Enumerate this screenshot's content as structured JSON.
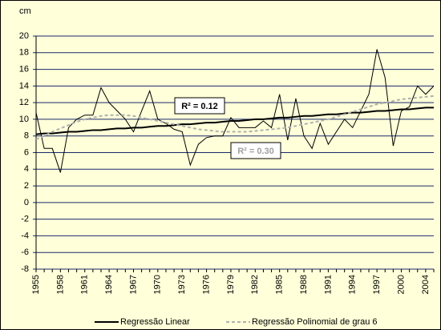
{
  "chart_data": {
    "type": "line",
    "y_label": "cm",
    "categories": [
      "1955",
      null,
      null,
      "1958",
      null,
      null,
      "1961",
      null,
      null,
      "1964",
      null,
      null,
      "1967",
      null,
      null,
      "1970",
      null,
      null,
      "1973",
      null,
      null,
      "1976",
      null,
      null,
      "1979",
      null,
      null,
      "1982",
      null,
      null,
      "1985",
      null,
      null,
      "1988",
      null,
      null,
      "1991",
      null,
      null,
      "1994",
      null,
      null,
      "1997",
      null,
      null,
      "2000",
      null,
      null,
      "2004",
      null
    ],
    "series": [
      {
        "color": "#000000",
        "values": [
          10.8,
          6.5,
          6.5,
          3.6,
          9,
          10,
          10.5,
          10.5,
          13.8,
          12,
          11,
          10,
          8.5,
          11,
          13.4,
          10,
          9.5,
          8.8,
          8.5,
          4.5,
          7,
          7.8,
          8,
          8,
          10.2,
          9,
          9,
          9,
          9.8,
          9,
          13,
          7.5,
          12.5,
          8,
          6.5,
          9.5,
          7,
          8.5,
          10,
          9,
          11,
          13,
          18.4,
          15,
          6.8,
          11,
          11.5,
          14,
          13,
          14
        ]
      },
      {
        "name": "Regressão Linear",
        "color": "#000000",
        "values": [
          8.2,
          8.3,
          8.3,
          8.4,
          8.5,
          8.5,
          8.6,
          8.7,
          8.7,
          8.8,
          8.9,
          8.9,
          9.0,
          9.0,
          9.1,
          9.2,
          9.2,
          9.3,
          9.4,
          9.4,
          9.5,
          9.6,
          9.6,
          9.7,
          9.8,
          9.8,
          9.9,
          10.0,
          10.0,
          10.1,
          10.2,
          10.2,
          10.3,
          10.4,
          10.4,
          10.5,
          10.6,
          10.6,
          10.7,
          10.8,
          10.8,
          10.9,
          11.0,
          11.0,
          11.1,
          11.2,
          11.2,
          11.3,
          11.4,
          11.4
        ]
      },
      {
        "name": "Regressão Polinomial de grau 6",
        "color": "#b0b0b0",
        "dashed": true,
        "values": [
          7.6,
          8.0,
          8.5,
          8.9,
          9.3,
          9.7,
          10.0,
          10.2,
          10.4,
          10.5,
          10.5,
          10.5,
          10.4,
          10.2,
          10.0,
          9.8,
          9.6,
          9.4,
          9.2,
          9.0,
          8.8,
          8.7,
          8.6,
          8.5,
          8.5,
          8.5,
          8.5,
          8.6,
          8.7,
          8.8,
          8.9,
          9.0,
          9.2,
          9.4,
          9.6,
          9.8,
          10.0,
          10.3,
          10.6,
          10.9,
          11.2,
          11.5,
          11.8,
          12.0,
          12.2,
          12.4,
          12.5,
          12.6,
          12.7,
          12.8
        ]
      }
    ],
    "annotations": [
      "R² = 0.12",
      "R² = 0.30"
    ],
    "ylim": [
      -8,
      20
    ],
    "yticks": [
      -8,
      -6,
      -4,
      -2,
      0,
      2,
      4,
      6,
      8,
      10,
      12,
      14,
      16,
      18,
      20
    ],
    "grid": true,
    "legend": "bottom",
    "background": "#ffffd9"
  }
}
